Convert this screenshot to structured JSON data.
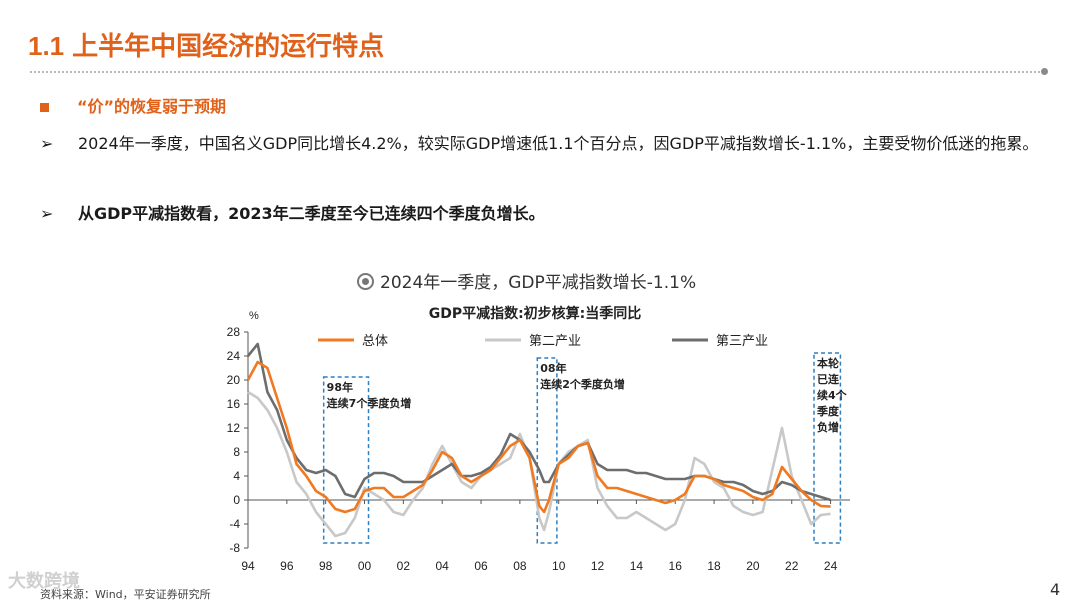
{
  "slide": {
    "title_num": "1.1",
    "title_text": "上半年中国经济的运行特点",
    "subtitle": "“价”的恢复弱于预期",
    "bullet_arrow": "➢",
    "bullets": [
      "2024年一季度，中国名义GDP同比增长4.2%，较实际GDP增速低1.1个百分点，因GDP平减指数增长-1.1%，主要受物价低迷的拖累。",
      "从GDP平减指数看，2023年二季度至今已连续四个季度负增长。"
    ],
    "chart_caption": "2024年一季度，GDP平减指数增长-1.1%",
    "footer": "资料来源：Wind，平安证券研究所",
    "page_number": "4",
    "watermark": "大数跨境"
  },
  "colors": {
    "accent": "#e0621a",
    "series_total": "#ef7a22",
    "series_secondary": "#c8c8c8",
    "series_tertiary": "#6d6d6d",
    "annotation_box": "#2f7fc1"
  },
  "chart_data": {
    "type": "line",
    "title": "GDP平减指数:初步核算:当季同比",
    "ylabel": "%",
    "xlabel": "",
    "ylim": [
      -8,
      28
    ],
    "xlim": [
      1994,
      2025
    ],
    "yticks": [
      -8,
      -4,
      0,
      4,
      8,
      12,
      16,
      20,
      24,
      28
    ],
    "xticks": [
      94,
      96,
      98,
      0,
      2,
      4,
      6,
      8,
      10,
      12,
      14,
      16,
      18,
      20,
      22,
      24
    ],
    "xtick_labels": [
      "94",
      "96",
      "98",
      "00",
      "02",
      "04",
      "06",
      "08",
      "10",
      "12",
      "14",
      "16",
      "18",
      "20",
      "22",
      "24"
    ],
    "legend": [
      "总体",
      "第二产业",
      "第三产业"
    ],
    "annotations": [
      {
        "text": "98年 连续7个季度负增",
        "lines": [
          "98年",
          "连续7个季度负增"
        ],
        "x_range": [
          1998.0,
          2000.0
        ]
      },
      {
        "text": "08年 连续2个季度负增",
        "lines": [
          "08年",
          "连续2个季度负增"
        ],
        "x_range": [
          2009.0,
          2009.7
        ]
      },
      {
        "text": "本轮 已连续4个季度负增",
        "lines": [
          "本轮",
          "已连",
          "续4个",
          "季度",
          "负增"
        ],
        "x_range": [
          2023.25,
          2024.3
        ]
      }
    ],
    "series": [
      {
        "name": "总体",
        "x": [
          1994.0,
          1994.5,
          1995.0,
          1995.5,
          1996.0,
          1996.5,
          1997.0,
          1997.5,
          1998.0,
          1998.5,
          1999.0,
          1999.5,
          2000.0,
          2000.5,
          2001.0,
          2001.5,
          2002.0,
          2002.5,
          2003.0,
          2003.5,
          2004.0,
          2004.5,
          2005.0,
          2005.5,
          2006.0,
          2006.5,
          2007.0,
          2007.5,
          2008.0,
          2008.5,
          2009.0,
          2009.25,
          2009.5,
          2010.0,
          2010.5,
          2011.0,
          2011.5,
          2012.0,
          2012.5,
          2013.0,
          2013.5,
          2014.0,
          2014.5,
          2015.0,
          2015.5,
          2016.0,
          2016.5,
          2017.0,
          2017.5,
          2018.0,
          2018.5,
          2019.0,
          2019.5,
          2020.0,
          2020.5,
          2021.0,
          2021.5,
          2022.0,
          2022.5,
          2023.0,
          2023.5,
          2024.0
        ],
        "values": [
          20,
          23,
          22,
          17,
          12,
          6,
          4,
          1.5,
          0.5,
          -1.5,
          -2,
          -1.5,
          1.5,
          2,
          2,
          0.5,
          0.5,
          1.5,
          2.5,
          5,
          8,
          7,
          4,
          3,
          4,
          5,
          7,
          9,
          10,
          7,
          -1,
          -2,
          0,
          6,
          7,
          9,
          9.5,
          4,
          2,
          2,
          1.5,
          1,
          0.5,
          0,
          -0.5,
          0,
          1,
          4,
          4,
          3.5,
          2.5,
          2,
          1.5,
          0.5,
          0,
          1,
          5.5,
          3.5,
          1.5,
          0,
          -1,
          -1.1
        ]
      },
      {
        "name": "第二产业",
        "x": [
          1994.0,
          1994.5,
          1995.0,
          1995.5,
          1996.0,
          1996.5,
          1997.0,
          1997.5,
          1998.0,
          1998.5,
          1999.0,
          1999.5,
          2000.0,
          2000.5,
          2001.0,
          2001.5,
          2002.0,
          2002.5,
          2003.0,
          2003.5,
          2004.0,
          2004.5,
          2005.0,
          2005.5,
          2006.0,
          2006.5,
          2007.0,
          2007.5,
          2008.0,
          2008.5,
          2009.0,
          2009.25,
          2009.5,
          2010.0,
          2010.5,
          2011.0,
          2011.5,
          2012.0,
          2012.5,
          2013.0,
          2013.5,
          2014.0,
          2014.5,
          2015.0,
          2015.5,
          2016.0,
          2016.5,
          2017.0,
          2017.5,
          2018.0,
          2018.5,
          2019.0,
          2019.5,
          2020.0,
          2020.5,
          2021.0,
          2021.5,
          2022.0,
          2022.5,
          2023.0,
          2023.5,
          2024.0
        ],
        "values": [
          18,
          17,
          15,
          12,
          8,
          3,
          1,
          -2,
          -4,
          -6,
          -5.5,
          -3,
          2,
          1,
          0,
          -2,
          -2.5,
          0,
          2,
          6,
          9,
          6,
          3,
          2,
          4,
          5,
          6,
          7,
          11,
          7,
          -3,
          -5,
          -2,
          6,
          8,
          9,
          10,
          2,
          -1,
          -3,
          -3,
          -2,
          -3,
          -4,
          -5,
          -4,
          0,
          7,
          6,
          3,
          2,
          -1,
          -2,
          -2.5,
          -2,
          5,
          12,
          4,
          0,
          -4,
          -2.5,
          -2.3
        ]
      },
      {
        "name": "第三产业",
        "x": [
          1994.0,
          1994.5,
          1995.0,
          1995.5,
          1996.0,
          1996.5,
          1997.0,
          1997.5,
          1998.0,
          1998.5,
          1999.0,
          1999.5,
          2000.0,
          2000.5,
          2001.0,
          2001.5,
          2002.0,
          2002.5,
          2003.0,
          2003.5,
          2004.0,
          2004.5,
          2005.0,
          2005.5,
          2006.0,
          2006.5,
          2007.0,
          2007.5,
          2008.0,
          2008.5,
          2009.0,
          2009.25,
          2009.5,
          2010.0,
          2010.5,
          2011.0,
          2011.5,
          2012.0,
          2012.5,
          2013.0,
          2013.5,
          2014.0,
          2014.5,
          2015.0,
          2015.5,
          2016.0,
          2016.5,
          2017.0,
          2017.5,
          2018.0,
          2018.5,
          2019.0,
          2019.5,
          2020.0,
          2020.5,
          2021.0,
          2021.5,
          2022.0,
          2022.5,
          2023.0,
          2023.5,
          2024.0
        ],
        "values": [
          24,
          26,
          18,
          15,
          10,
          7,
          5,
          4.5,
          5,
          4,
          1,
          0.5,
          3.5,
          4.5,
          4.5,
          4,
          3,
          3,
          3,
          4,
          5,
          6,
          4,
          4,
          4.5,
          5.5,
          7.5,
          11,
          10,
          8,
          5,
          3,
          3,
          6,
          7.5,
          9,
          9.5,
          6,
          5,
          5,
          5,
          4.5,
          4.5,
          4,
          3.5,
          3.5,
          3.5,
          4,
          4,
          3.5,
          3,
          3,
          2.5,
          1.5,
          1,
          1.5,
          3,
          2.5,
          1.5,
          1,
          0.5,
          0
        ]
      }
    ]
  }
}
